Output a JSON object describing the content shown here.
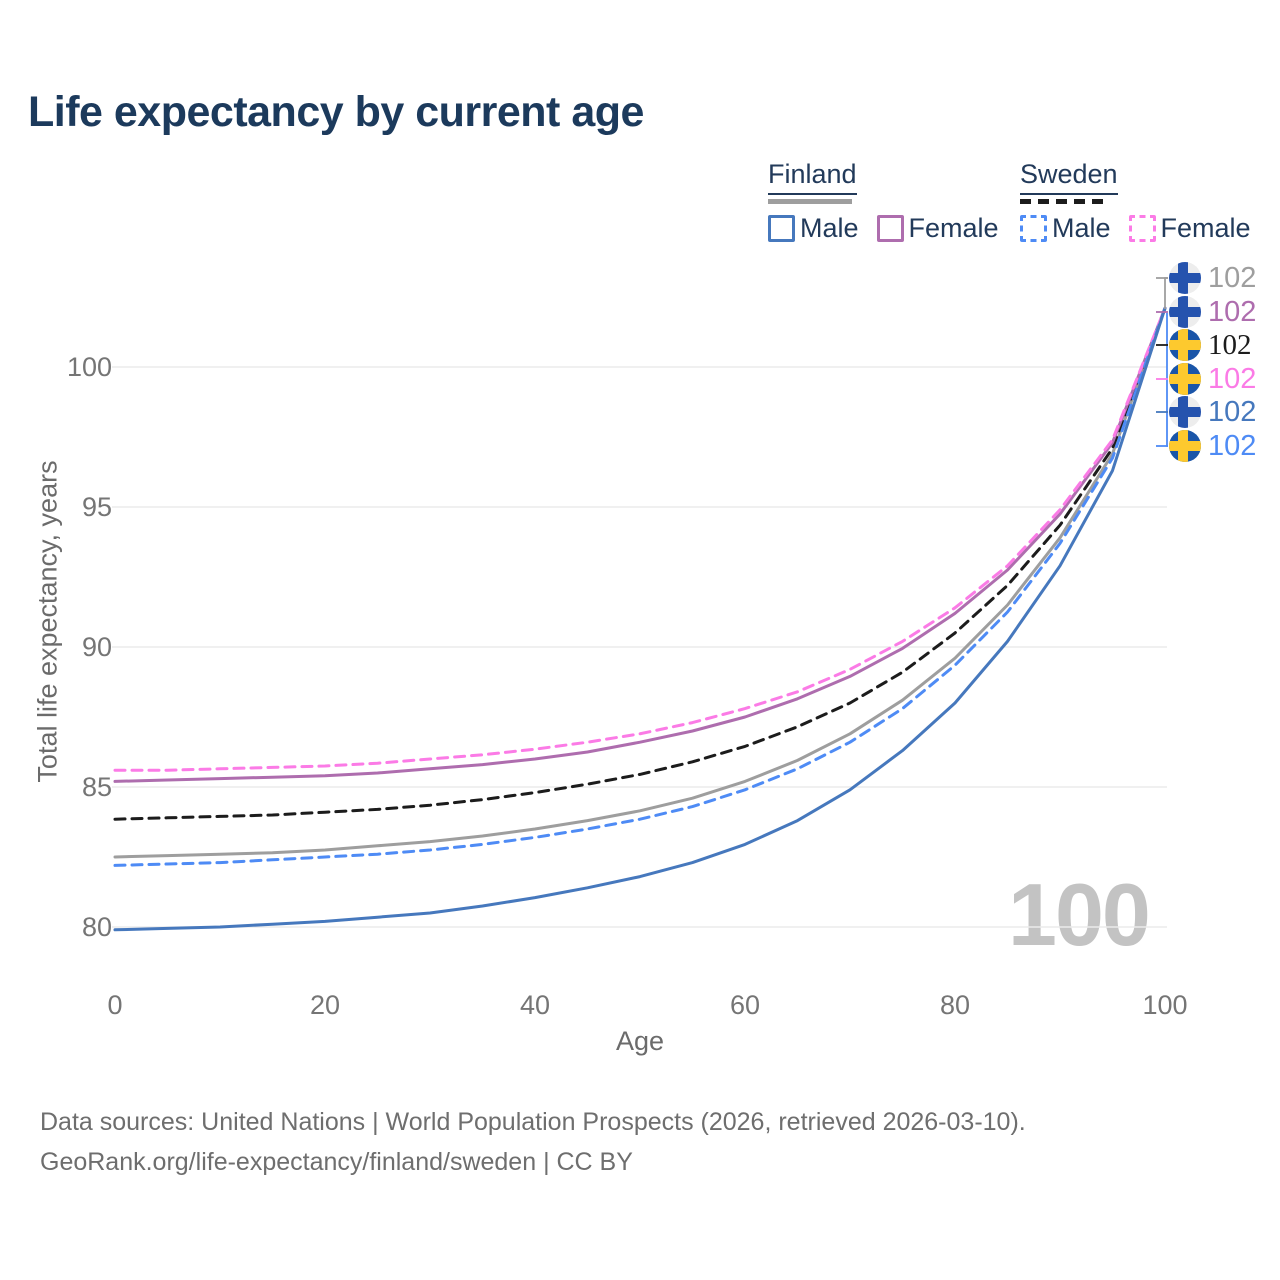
{
  "title": "Life expectancy by current age",
  "colors": {
    "finland_male": "#4678bd",
    "finland_female": "#ae6dae",
    "finland_total": "#9e9e9e",
    "sweden_male": "#4e8bf5",
    "sweden_female": "#fb7be6",
    "sweden_total": "#1c1c1c",
    "grid": "#ebebeb",
    "title_text": "#1c3a5c",
    "axis_text": "#757575",
    "watermark": "#c3c3c3"
  },
  "legend": {
    "finland": {
      "label": "Finland",
      "items": [
        {
          "label": "Male"
        },
        {
          "label": "Female"
        }
      ]
    },
    "sweden": {
      "label": "Sweden",
      "items": [
        {
          "label": "Male"
        },
        {
          "label": "Female"
        }
      ]
    }
  },
  "chart_data": {
    "type": "line",
    "title": "Life expectancy by current age",
    "xlabel": "Age",
    "ylabel": "Total life expectancy, years",
    "xlim": [
      0,
      100
    ],
    "ylim": [
      78.5,
      103
    ],
    "grid": "horizontal",
    "xticks": [
      0,
      20,
      40,
      60,
      80,
      100
    ],
    "yticks": [
      100,
      95,
      90,
      85,
      80
    ],
    "xtick_labels": [
      "0",
      "20",
      "40",
      "60",
      "80",
      "100"
    ],
    "ytick_labels": [
      "100",
      "95",
      "90",
      "85",
      "80"
    ],
    "age_marker": "100",
    "x": [
      0,
      5,
      10,
      15,
      20,
      25,
      30,
      35,
      40,
      45,
      50,
      55,
      60,
      65,
      70,
      75,
      80,
      85,
      90,
      95,
      100
    ],
    "series": [
      {
        "name": "Finland Both sexes",
        "country": "Finland",
        "sex": "Both",
        "color": "#9e9e9e",
        "dash": "solid",
        "values": [
          82.5,
          82.55,
          82.6,
          82.65,
          82.75,
          82.9,
          83.05,
          83.25,
          83.5,
          83.8,
          84.15,
          84.6,
          85.2,
          85.95,
          86.9,
          88.1,
          89.6,
          91.5,
          93.9,
          96.9,
          102.1
        ]
      },
      {
        "name": "Sweden Both sexes",
        "country": "Sweden",
        "sex": "Both",
        "color": "#1c1c1c",
        "dash": "dashed",
        "values": [
          83.85,
          83.9,
          83.95,
          84.0,
          84.1,
          84.2,
          84.35,
          84.55,
          84.8,
          85.1,
          85.45,
          85.9,
          86.45,
          87.15,
          88.0,
          89.1,
          90.5,
          92.2,
          94.35,
          97.1,
          102.1
        ]
      },
      {
        "name": "Finland Female",
        "country": "Finland",
        "sex": "Female",
        "color": "#ae6dae",
        "dash": "solid",
        "values": [
          85.2,
          85.25,
          85.3,
          85.35,
          85.4,
          85.5,
          85.65,
          85.8,
          86.0,
          86.25,
          86.6,
          87.0,
          87.5,
          88.15,
          88.95,
          89.95,
          91.2,
          92.75,
          94.75,
          97.3,
          102.1
        ]
      },
      {
        "name": "Sweden Female",
        "country": "Sweden",
        "sex": "Female",
        "color": "#fb7be6",
        "dash": "dashed",
        "values": [
          85.6,
          85.6,
          85.65,
          85.7,
          85.75,
          85.85,
          86.0,
          86.15,
          86.35,
          86.6,
          86.9,
          87.3,
          87.8,
          88.4,
          89.2,
          90.2,
          91.4,
          92.9,
          94.9,
          97.4,
          102.1
        ]
      },
      {
        "name": "Sweden Male",
        "country": "Sweden",
        "sex": "Male",
        "color": "#4e8bf5",
        "dash": "dashed",
        "values": [
          82.2,
          82.25,
          82.3,
          82.4,
          82.5,
          82.6,
          82.75,
          82.95,
          83.2,
          83.5,
          83.85,
          84.3,
          84.9,
          85.65,
          86.6,
          87.8,
          89.35,
          91.25,
          93.7,
          96.75,
          102.1
        ]
      },
      {
        "name": "Finland Male",
        "country": "Finland",
        "sex": "Male",
        "color": "#4678bd",
        "dash": "solid",
        "values": [
          79.9,
          79.95,
          80.0,
          80.1,
          80.2,
          80.35,
          80.5,
          80.75,
          81.05,
          81.4,
          81.8,
          82.3,
          82.95,
          83.8,
          84.9,
          86.3,
          88.0,
          90.2,
          92.9,
          96.3,
          102.1
        ]
      }
    ]
  },
  "end_labels": [
    {
      "flag": "finland",
      "series": "Finland Both sexes",
      "value": "102",
      "color": "#9e9e9e"
    },
    {
      "flag": "finland",
      "series": "Finland Female",
      "value": "102",
      "color": "#ae6dae"
    },
    {
      "flag": "sweden",
      "series": "Sweden Both sexes",
      "value": "102",
      "color": "#1c1c1c"
    },
    {
      "flag": "sweden",
      "series": "Sweden Female",
      "value": "102",
      "color": "#fb7be6"
    },
    {
      "flag": "finland",
      "series": "Finland Male",
      "value": "102",
      "color": "#4678bd"
    },
    {
      "flag": "sweden",
      "series": "Sweden Male",
      "value": "102",
      "color": "#4e8bf5"
    }
  ],
  "footer": {
    "line1": "Data sources: United Nations | World Population Prospects (2026, retrieved 2026-03-10).",
    "line2": "GeoRank.org/life-expectancy/finland/sweden | CC BY"
  }
}
